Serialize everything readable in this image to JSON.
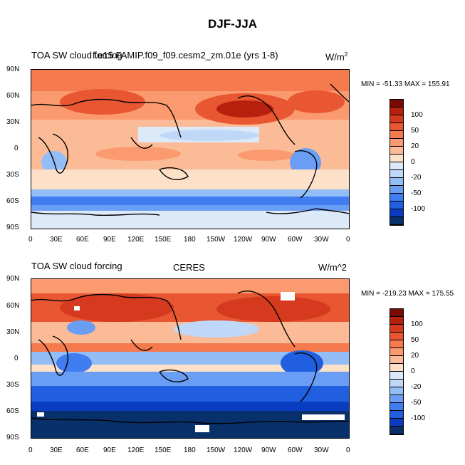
{
  "title": "DJF-JJA",
  "colorbar_colors": [
    "#08306b",
    "#0a3cc2",
    "#1f5fe0",
    "#3f7df0",
    "#6a9ef5",
    "#93bdf7",
    "#bfd8f7",
    "#dce9f8",
    "#fde0c8",
    "#fcbb97",
    "#fa9a6e",
    "#f57a4e",
    "#e85632",
    "#d63a1e",
    "#b8200e",
    "#7a0a05"
  ],
  "colorbar_labels": [
    "100",
    "50",
    "20",
    "0",
    "-20",
    "-50",
    "-100"
  ],
  "lat_labels": [
    "90N",
    "60N",
    "30N",
    "0",
    "30S",
    "60S",
    "90S"
  ],
  "lon_labels": [
    "0",
    "30E",
    "60E",
    "90E",
    "120E",
    "150E",
    "180",
    "150W",
    "120W",
    "90W",
    "60W",
    "30W",
    "0"
  ],
  "top": {
    "left_label": "TOA SW cloud forcing",
    "center_label": "f.e15.FAMIP.f09_f09.cesm2_zm.01e (yrs 1-8)",
    "right_label": "W/m",
    "right_sup": "2",
    "minmax": "MIN = -51.33 MAX = 155.91"
  },
  "bottom": {
    "left_label": "TOA SW cloud forcing",
    "center_label": "CERES",
    "right_label": "W/m^2",
    "minmax": "MIN = -219.23 MAX = 175.55"
  }
}
